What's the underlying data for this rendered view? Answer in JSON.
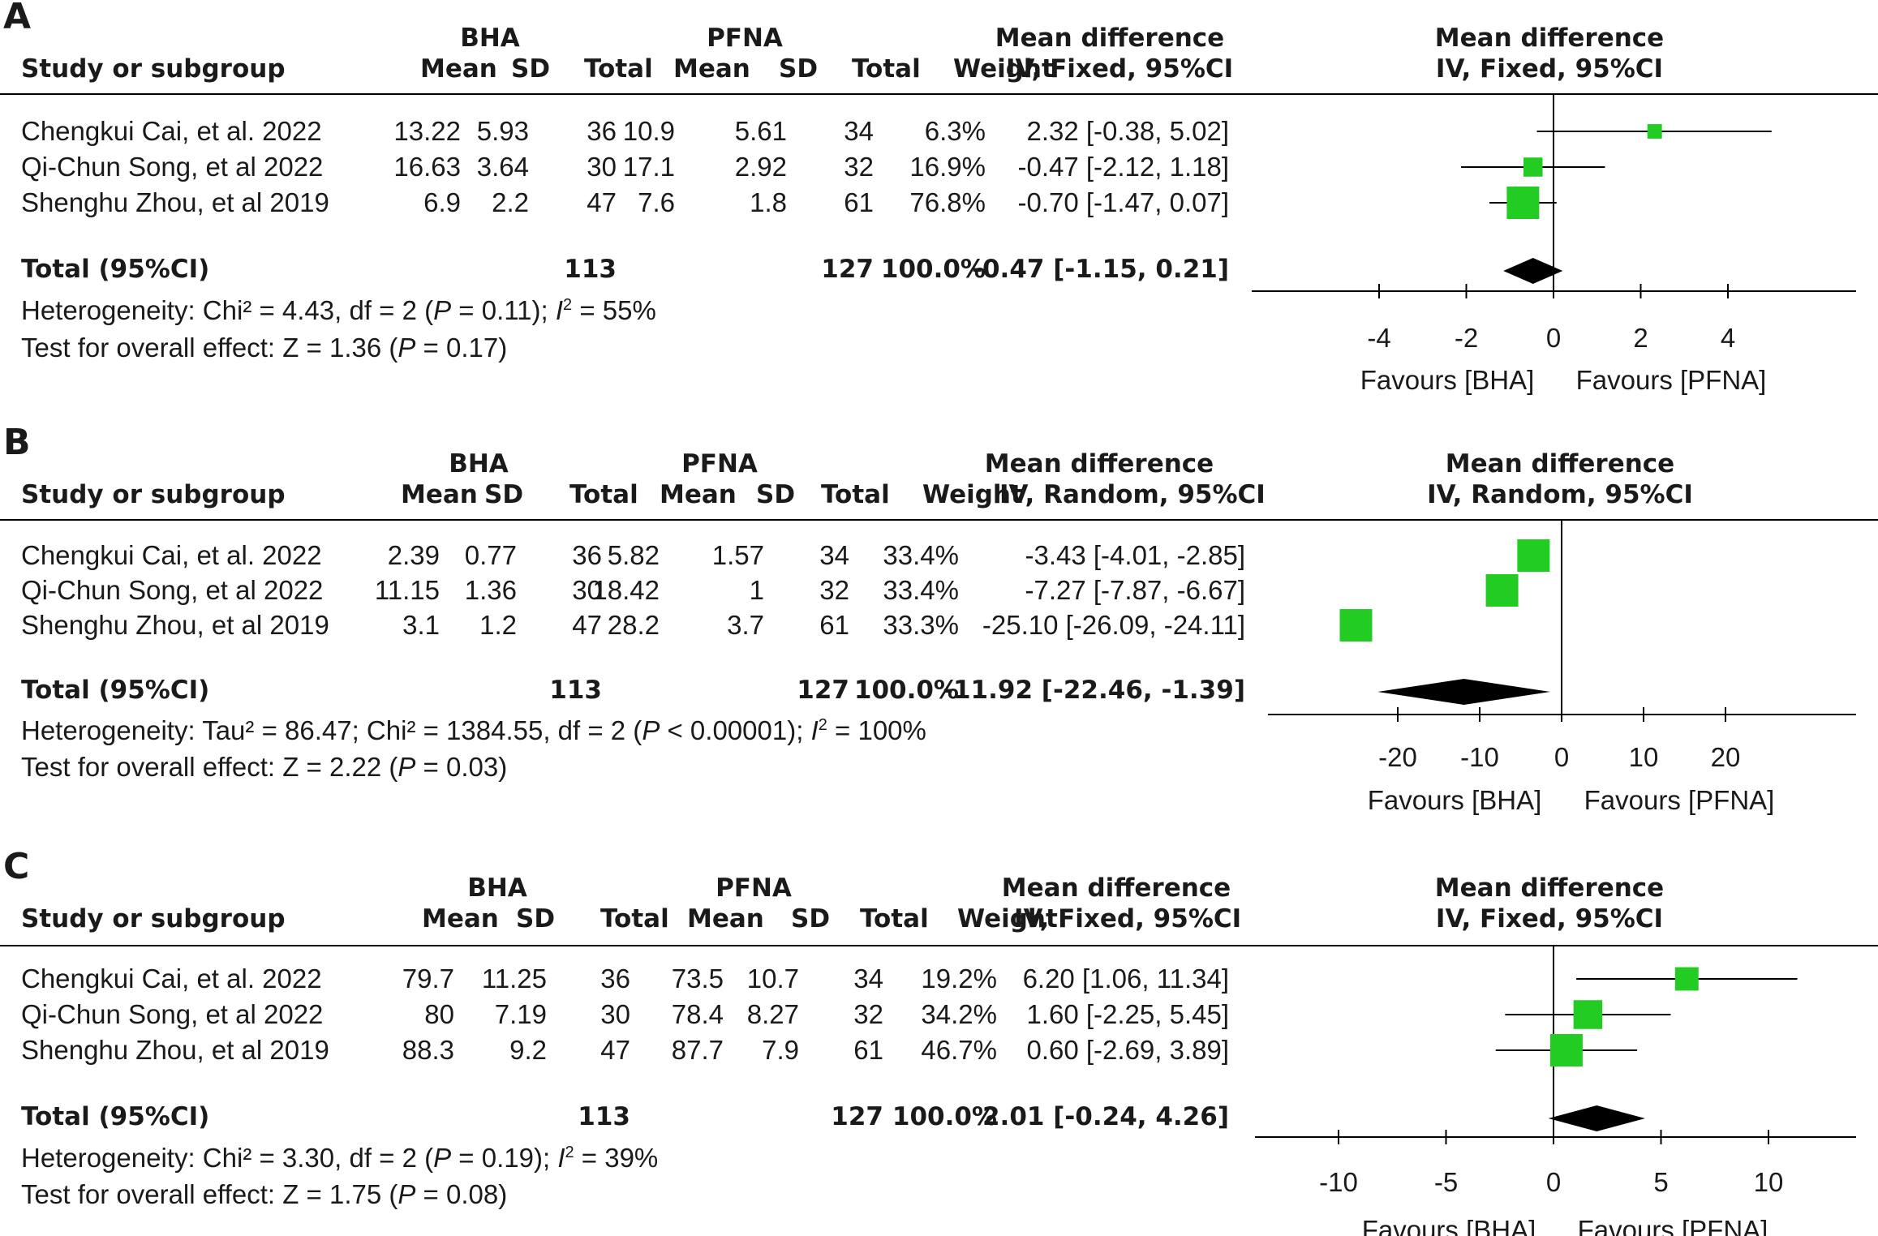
{
  "colors": {
    "study_marker": "#22cc22",
    "diamond": "#000000",
    "lines": "#000000",
    "text": "#1a1a1a"
  },
  "chart_data": [
    {
      "type": "forest",
      "panel_label": "A",
      "headers": {
        "group1": "BHA",
        "group2": "PFNA",
        "study": "Study or subgroup",
        "mean": "Mean",
        "sd": "SD",
        "total": "Total",
        "weight": "Weight",
        "md_title": "Mean difference",
        "method": "IV, Fixed, 95%CI",
        "plot_title": "Mean difference",
        "plot_method": "IV, Fixed, 95%CI"
      },
      "rows": [
        {
          "study": "Chengkui Cai, et al. 2022",
          "m1": "13.22",
          "sd1": "5.93",
          "n1": "36",
          "m2": "10.9",
          "sd2": "5.61",
          "n2": "34",
          "weight": "6.3%",
          "ci": "2.32 [-0.38, 5.02]",
          "est": 2.32,
          "lo": -0.38,
          "hi": 5.02,
          "w": 6.3
        },
        {
          "study": "Qi-Chun Song, et al 2022",
          "m1": "16.63",
          "sd1": "3.64",
          "n1": "30",
          "m2": "17.1",
          "sd2": "2.92",
          "n2": "32",
          "weight": "16.9%",
          "ci": "-0.47 [-2.12, 1.18]",
          "est": -0.47,
          "lo": -2.12,
          "hi": 1.18,
          "w": 16.9
        },
        {
          "study": "Shenghu Zhou, et al 2019",
          "m1": "6.9",
          "sd1": "2.2",
          "n1": "47",
          "m2": "7.6",
          "sd2": "1.8",
          "n2": "61",
          "weight": "76.8%",
          "ci": "-0.70 [-1.47, 0.07]",
          "est": -0.7,
          "lo": -1.47,
          "hi": 0.07,
          "w": 76.8
        }
      ],
      "total": {
        "label": "Total (95%CI)",
        "n1": "113",
        "n2": "127",
        "weight": "100.0%",
        "ci": "-0.47 [-1.15, 0.21]",
        "est": -0.47,
        "lo": -1.15,
        "hi": 0.21
      },
      "heterogeneity": {
        "prefix": "Heterogeneity: Chi² = 4.43, df = 2 (",
        "p": "P",
        "mid": " = 0.11); ",
        "i2": "I",
        "sup": "2",
        "suffix": " = 55%"
      },
      "overall": {
        "prefix": "Test for overall effect: Z = 1.36 (",
        "p": "P",
        "suffix": " = 0.17)"
      },
      "axis": {
        "min": -5,
        "max": 5,
        "ticks": [
          -4,
          -2,
          0,
          2,
          4
        ],
        "tick_labels": [
          "-4",
          "-2",
          "0",
          "2",
          "4"
        ]
      },
      "favours_left": "Favours [BHA]",
      "favours_right": "Favours [PFNA]"
    },
    {
      "type": "forest",
      "panel_label": "B",
      "headers": {
        "group1": "BHA",
        "group2": "PFNA",
        "study": "Study or subgroup",
        "mean": "Mean",
        "sd": "SD",
        "total": "Total",
        "weight": "Weight",
        "md_title": "Mean difference",
        "method": "IV, Random, 95%CI",
        "plot_title": "Mean difference",
        "plot_method": "IV, Random, 95%CI"
      },
      "rows": [
        {
          "study": "Chengkui Cai, et al. 2022",
          "m1": "2.39",
          "sd1": "0.77",
          "n1": "36",
          "m2": "5.82",
          "sd2": "1.57",
          "n2": "34",
          "weight": "33.4%",
          "ci": "-3.43 [-4.01, -2.85]",
          "est": -3.43,
          "lo": -4.01,
          "hi": -2.85,
          "w": 33.4
        },
        {
          "study": "Qi-Chun Song, et al 2022",
          "m1": "11.15",
          "sd1": "1.36",
          "n1": "30",
          "m2": "18.42",
          "sd2": "1",
          "n2": "32",
          "weight": "33.4%",
          "ci": "-7.27 [-7.87, -6.67]",
          "est": -7.27,
          "lo": -7.87,
          "hi": -6.67,
          "w": 33.4
        },
        {
          "study": "Shenghu Zhou, et al 2019",
          "m1": "3.1",
          "sd1": "1.2",
          "n1": "47",
          "m2": "28.2",
          "sd2": "3.7",
          "n2": "61",
          "weight": "33.3%",
          "ci": "-25.10 [-26.09, -24.11]",
          "est": -25.1,
          "lo": -26.09,
          "hi": -24.11,
          "w": 33.3
        }
      ],
      "total": {
        "label": "Total (95%CI)",
        "n1": "113",
        "n2": "127",
        "weight": "100.0%",
        "ci": "-11.92 [-22.46, -1.39]",
        "est": -11.92,
        "lo": -22.46,
        "hi": -1.39
      },
      "heterogeneity": {
        "prefix": "Heterogeneity: Tau² = 86.47; Chi² = 1384.55, df = 2 (",
        "p": "P",
        "mid": " < 0.00001); ",
        "i2": "I",
        "sup": "2",
        "suffix": " = 100%"
      },
      "overall": {
        "prefix": "Test for overall effect: Z = 2.22 (",
        "p": "P",
        "suffix": " = 0.03)"
      },
      "axis": {
        "min": -25,
        "max": 25,
        "ticks": [
          -20,
          -10,
          0,
          10,
          20
        ],
        "tick_labels": [
          "-20",
          "-10",
          "0",
          "10",
          "20"
        ]
      },
      "favours_left": "Favours [BHA]",
      "favours_right": "Favours [PFNA]"
    },
    {
      "type": "forest",
      "panel_label": "C",
      "headers": {
        "group1": "BHA",
        "group2": "PFNA",
        "study": "Study or subgroup",
        "mean": "Mean",
        "sd": "SD",
        "total": "Total",
        "weight": "Weight",
        "md_title": "Mean difference",
        "method": "IV, Fixed, 95%CI",
        "plot_title": "Mean difference",
        "plot_method": "IV, Fixed, 95%CI"
      },
      "rows": [
        {
          "study": "Chengkui Cai, et al. 2022",
          "m1": "79.7",
          "sd1": "11.25",
          "n1": "36",
          "m2": "73.5",
          "sd2": "10.7",
          "n2": "34",
          "weight": "19.2%",
          "ci": "6.20 [1.06, 11.34]",
          "est": 6.2,
          "lo": 1.06,
          "hi": 11.34,
          "w": 19.2
        },
        {
          "study": "Qi-Chun Song, et al 2022",
          "m1": "80",
          "sd1": "7.19",
          "n1": "30",
          "m2": "78.4",
          "sd2": "8.27",
          "n2": "32",
          "weight": "34.2%",
          "ci": "1.60 [-2.25, 5.45]",
          "est": 1.6,
          "lo": -2.25,
          "hi": 5.45,
          "w": 34.2
        },
        {
          "study": "Shenghu Zhou, et al 2019",
          "m1": "88.3",
          "sd1": "9.2",
          "n1": "47",
          "m2": "87.7",
          "sd2": "7.9",
          "n2": "61",
          "weight": "46.7%",
          "ci": "0.60 [-2.69, 3.89]",
          "est": 0.6,
          "lo": -2.69,
          "hi": 3.89,
          "w": 46.7
        }
      ],
      "total": {
        "label": "Total (95%CI)",
        "n1": "113",
        "n2": "127",
        "weight": "100.0%",
        "ci": "2.01 [-0.24, 4.26]",
        "est": 2.01,
        "lo": -0.24,
        "hi": 4.26
      },
      "heterogeneity": {
        "prefix": "Heterogeneity: Chi² = 3.30, df = 2 (",
        "p": "P",
        "mid": " = 0.19); ",
        "i2": "I",
        "sup": "2",
        "suffix": " = 39%"
      },
      "overall": {
        "prefix": "Test for overall effect: Z = 1.75 (",
        "p": "P",
        "suffix": " = 0.08)"
      },
      "axis": {
        "min": -14,
        "max": 14,
        "ticks": [
          -10,
          -5,
          0,
          5,
          10
        ],
        "tick_labels": [
          "-10",
          "-5",
          "0",
          "5",
          "10"
        ]
      },
      "favours_left": "Favours [BHA]",
      "favours_right": "Favours [PFNA]"
    }
  ]
}
